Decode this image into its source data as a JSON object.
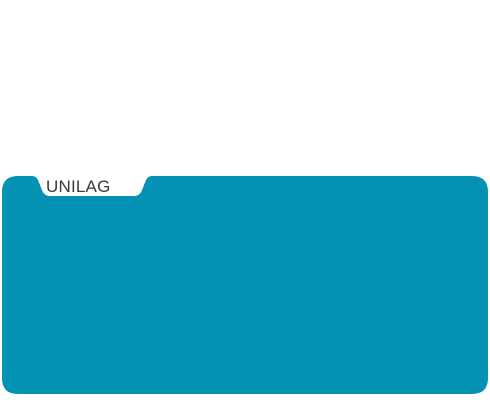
{
  "folder": {
    "tab_label": "UNILAG",
    "panel_color": "#0492b4",
    "tab_color": "#ffffff",
    "label_color": "#3a3a3a"
  }
}
